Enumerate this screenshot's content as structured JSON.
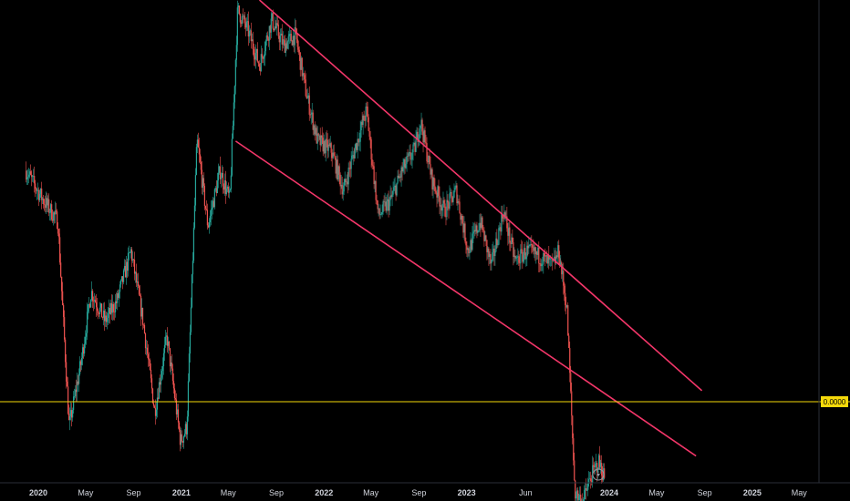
{
  "chart_data": {
    "type": "candlestick",
    "title": "",
    "xlabel": "",
    "ylabel": "",
    "grid": false,
    "x_ticks": [
      {
        "label": "2020",
        "date": "2020-01-01",
        "bold": true
      },
      {
        "label": "May",
        "date": "2020-05-01",
        "bold": false
      },
      {
        "label": "Sep",
        "date": "2020-09-01",
        "bold": false
      },
      {
        "label": "2021",
        "date": "2021-01-01",
        "bold": true
      },
      {
        "label": "May",
        "date": "2021-05-01",
        "bold": false
      },
      {
        "label": "Sep",
        "date": "2021-09-01",
        "bold": false
      },
      {
        "label": "2022",
        "date": "2022-01-01",
        "bold": true
      },
      {
        "label": "May",
        "date": "2022-05-01",
        "bold": false
      },
      {
        "label": "Sep",
        "date": "2022-09-01",
        "bold": false
      },
      {
        "label": "2023",
        "date": "2023-01-01",
        "bold": true
      },
      {
        "label": "Jun",
        "date": "2023-06-01",
        "bold": false
      },
      {
        "label": "2024",
        "date": "2024-01-01",
        "bold": true
      },
      {
        "label": "May",
        "date": "2024-05-01",
        "bold": false
      },
      {
        "label": "Sep",
        "date": "2024-09-01",
        "bold": false
      },
      {
        "label": "2025",
        "date": "2025-01-01",
        "bold": true
      },
      {
        "label": "May",
        "date": "2025-05-01",
        "bold": false
      }
    ],
    "price_line": {
      "label": "0.0000",
      "color": "#f5d90a"
    },
    "trendlines": [
      {
        "name": "upper-channel-line",
        "color": "#f23669",
        "from": [
          "2021-07-20",
          1.0
        ],
        "to": [
          "2024-08-25",
          0.222
        ]
      },
      {
        "name": "lower-channel-line",
        "color": "#f23669",
        "from": [
          "2021-05-20",
          0.719
        ],
        "to": [
          "2024-08-10",
          0.092
        ]
      }
    ],
    "price_anchors": [
      [
        "2019-12-01",
        0.66
      ],
      [
        "2020-01-15",
        0.6
      ],
      [
        "2020-02-20",
        0.56
      ],
      [
        "2020-03-20",
        0.15
      ],
      [
        "2020-04-20",
        0.28
      ],
      [
        "2020-05-15",
        0.42
      ],
      [
        "2020-06-20",
        0.36
      ],
      [
        "2020-07-20",
        0.4
      ],
      [
        "2020-08-25",
        0.5
      ],
      [
        "2020-09-25",
        0.36
      ],
      [
        "2020-10-25",
        0.18
      ],
      [
        "2020-11-25",
        0.33
      ],
      [
        "2020-12-30",
        0.12
      ],
      [
        "2021-01-15",
        0.15
      ],
      [
        "2021-02-10",
        0.72
      ],
      [
        "2021-03-10",
        0.55
      ],
      [
        "2021-04-10",
        0.66
      ],
      [
        "2021-05-05",
        0.6
      ],
      [
        "2021-05-25",
        0.98
      ],
      [
        "2021-06-20",
        0.94
      ],
      [
        "2021-07-20",
        0.87
      ],
      [
        "2021-08-20",
        0.96
      ],
      [
        "2021-09-20",
        0.91
      ],
      [
        "2021-10-20",
        0.93
      ],
      [
        "2021-11-15",
        0.82
      ],
      [
        "2021-12-15",
        0.72
      ],
      [
        "2022-01-20",
        0.7
      ],
      [
        "2022-02-20",
        0.62
      ],
      [
        "2022-03-20",
        0.7
      ],
      [
        "2022-04-20",
        0.78
      ],
      [
        "2022-05-20",
        0.57
      ],
      [
        "2022-06-20",
        0.6
      ],
      [
        "2022-07-20",
        0.66
      ],
      [
        "2022-08-20",
        0.7
      ],
      [
        "2022-09-05",
        0.76
      ],
      [
        "2022-10-05",
        0.64
      ],
      [
        "2022-11-05",
        0.58
      ],
      [
        "2022-12-05",
        0.62
      ],
      [
        "2023-01-05",
        0.5
      ],
      [
        "2023-02-05",
        0.56
      ],
      [
        "2023-03-05",
        0.47
      ],
      [
        "2023-04-05",
        0.58
      ],
      [
        "2023-05-05",
        0.48
      ],
      [
        "2023-06-05",
        0.5
      ],
      [
        "2023-07-05",
        0.49
      ],
      [
        "2023-08-10",
        0.47
      ],
      [
        "2023-08-25",
        0.5
      ],
      [
        "2023-09-15",
        0.38
      ],
      [
        "2023-10-05",
        0.02
      ],
      [
        "2023-10-25",
        0.0
      ],
      [
        "2023-11-15",
        0.05
      ],
      [
        "2023-12-05",
        0.08
      ],
      [
        "2023-12-20",
        0.05
      ]
    ]
  },
  "watermark": {
    "icon": "lightning-icon",
    "color": "#9598a1"
  }
}
